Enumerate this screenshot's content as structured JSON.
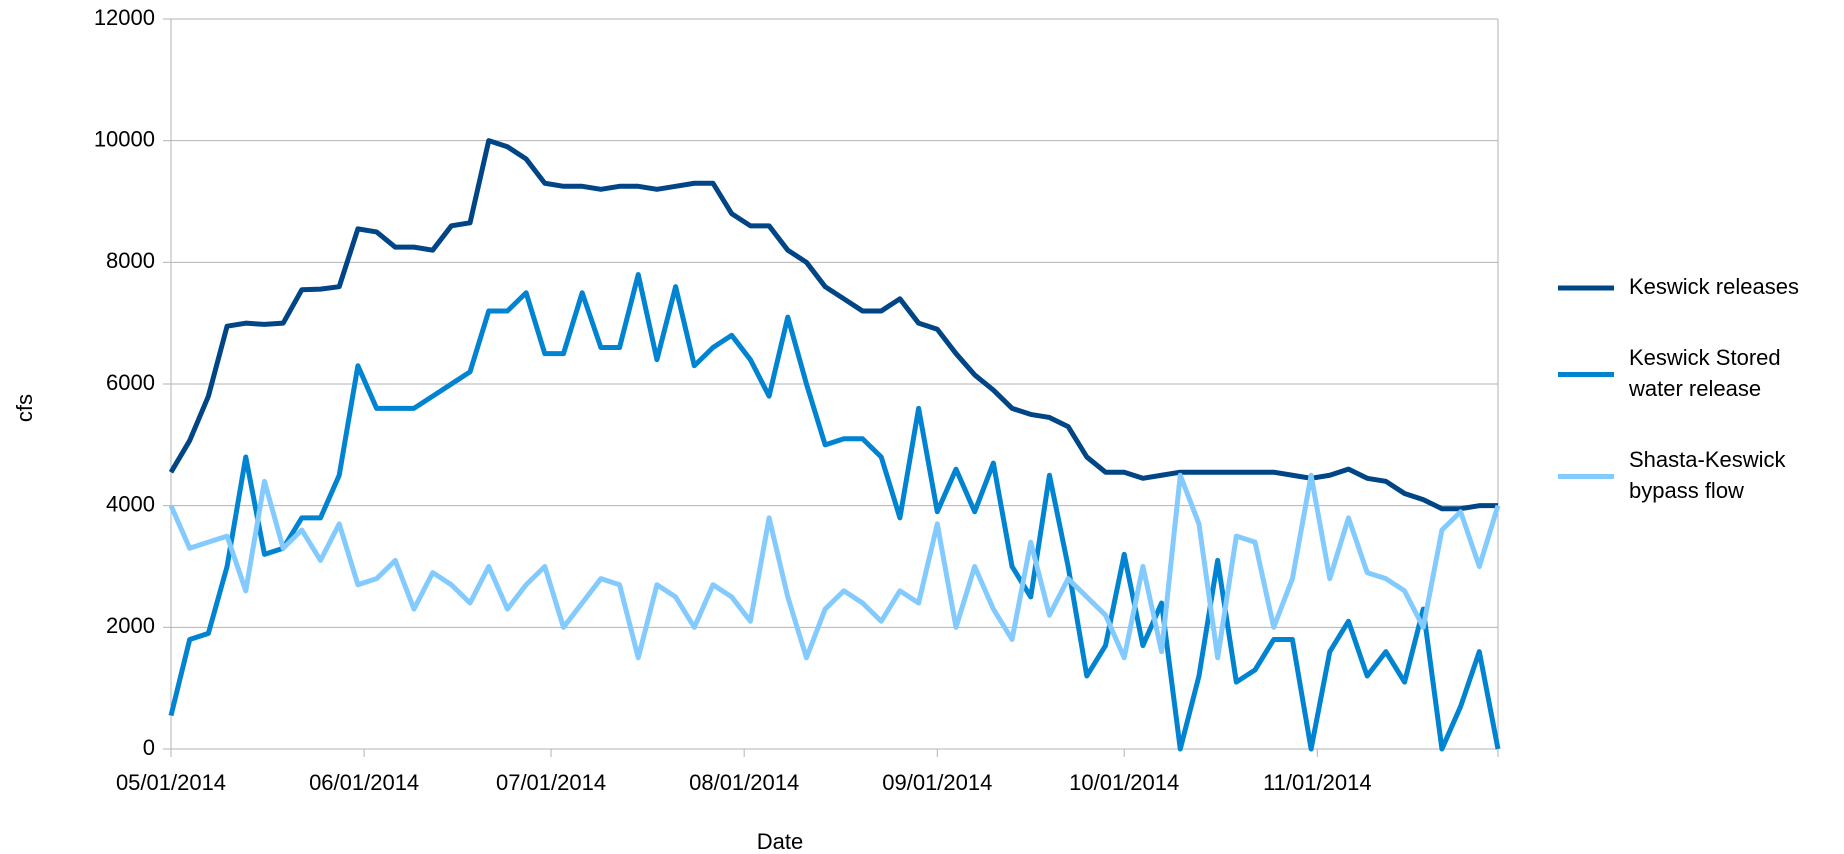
{
  "chart_data": {
    "type": "line",
    "x_label": "Date",
    "y_label": "cfs",
    "x": [
      "05/01/2014",
      "05/04/2014",
      "05/07/2014",
      "05/10/2014",
      "05/13/2014",
      "05/16/2014",
      "05/19/2014",
      "05/22/2014",
      "05/25/2014",
      "05/28/2014",
      "05/31/2014",
      "06/03/2014",
      "06/06/2014",
      "06/09/2014",
      "06/12/2014",
      "06/15/2014",
      "06/18/2014",
      "06/21/2014",
      "06/24/2014",
      "06/27/2014",
      "06/30/2014",
      "07/03/2014",
      "07/06/2014",
      "07/09/2014",
      "07/12/2014",
      "07/15/2014",
      "07/18/2014",
      "07/21/2014",
      "07/24/2014",
      "07/27/2014",
      "07/30/2014",
      "08/02/2014",
      "08/05/2014",
      "08/08/2014",
      "08/11/2014",
      "08/14/2014",
      "08/17/2014",
      "08/20/2014",
      "08/23/2014",
      "08/26/2014",
      "08/29/2014",
      "09/01/2014",
      "09/04/2014",
      "09/07/2014",
      "09/10/2014",
      "09/13/2014",
      "09/16/2014",
      "09/19/2014",
      "09/22/2014",
      "09/25/2014",
      "09/28/2014",
      "10/01/2014",
      "10/04/2014",
      "10/07/2014",
      "10/10/2014",
      "10/13/2014",
      "10/16/2014",
      "10/19/2014",
      "10/22/2014",
      "10/25/2014",
      "10/28/2014",
      "10/31/2014",
      "11/03/2014",
      "11/06/2014",
      "11/09/2014",
      "11/12/2014",
      "11/15/2014",
      "11/18/2014",
      "11/21/2014",
      "11/24/2014",
      "11/27/2014",
      "11/30/2014"
    ],
    "series": [
      {
        "name": "Keswick releases",
        "color": "#004586",
        "values": [
          4550,
          5070,
          5800,
          6950,
          7000,
          6980,
          7000,
          7550,
          7560,
          7600,
          8550,
          8500,
          8250,
          8250,
          8200,
          8600,
          8650,
          10000,
          9900,
          9700,
          9300,
          9250,
          9250,
          9200,
          9250,
          9250,
          9200,
          9250,
          9300,
          9300,
          8800,
          8600,
          8600,
          8200,
          8000,
          7600,
          7400,
          7200,
          7200,
          7400,
          7000,
          6900,
          6500,
          6150,
          5900,
          5600,
          5500,
          5450,
          5300,
          4800,
          4550,
          4550,
          4450,
          4500,
          4550,
          4550,
          4550,
          4550,
          4550,
          4550,
          4500,
          4450,
          4500,
          4600,
          4450,
          4400,
          4200,
          4100,
          3950,
          3950,
          4000,
          4000
        ]
      },
      {
        "name": "Keswick Stored water release",
        "color": "#0084d1",
        "values": [
          550,
          1800,
          1900,
          3000,
          4800,
          3200,
          3300,
          3800,
          3800,
          4500,
          6300,
          5600,
          5600,
          5600,
          5800,
          6000,
          6200,
          7200,
          7200,
          7500,
          6500,
          6500,
          7500,
          6600,
          6600,
          7800,
          6400,
          7600,
          6300,
          6600,
          6800,
          6400,
          5800,
          7100,
          6000,
          5000,
          5100,
          5100,
          4800,
          3800,
          5600,
          3900,
          4600,
          3900,
          4700,
          3000,
          2500,
          4500,
          3000,
          1200,
          1700,
          3200,
          1700,
          2400,
          0,
          1200,
          3100,
          1100,
          1300,
          1800,
          1800,
          0,
          1600,
          2100,
          1200,
          1600,
          1100,
          2300,
          0,
          700,
          1600,
          0
        ]
      },
      {
        "name": "Shasta-Keswick bypass flow",
        "color": "#83caff",
        "values": [
          4000,
          3300,
          3400,
          3500,
          2600,
          4400,
          3300,
          3600,
          3100,
          3700,
          2700,
          2800,
          3100,
          2300,
          2900,
          2700,
          2400,
          3000,
          2300,
          2700,
          3000,
          2000,
          2400,
          2800,
          2700,
          1500,
          2700,
          2500,
          2000,
          2700,
          2500,
          2100,
          3800,
          2500,
          1500,
          2300,
          2600,
          2400,
          2100,
          2600,
          2400,
          3700,
          2000,
          3000,
          2300,
          1800,
          3400,
          2200,
          2800,
          2500,
          2200,
          1500,
          3000,
          1600,
          4500,
          3700,
          1500,
          3500,
          3400,
          2000,
          2800,
          4500,
          2800,
          3800,
          2900,
          2800,
          2600,
          2000,
          3600,
          3900,
          3000,
          4000
        ]
      }
    ],
    "xlim": [
      "05/01/2014",
      "11/30/2014"
    ],
    "xticks": [
      "05/01/2014",
      "06/01/2014",
      "07/01/2014",
      "08/01/2014",
      "09/01/2014",
      "10/01/2014",
      "11/01/2014"
    ],
    "ylim": [
      0,
      12000
    ],
    "yticks": [
      0,
      2000,
      4000,
      6000,
      8000,
      10000,
      12000
    ],
    "grid": true,
    "legend": "right"
  }
}
